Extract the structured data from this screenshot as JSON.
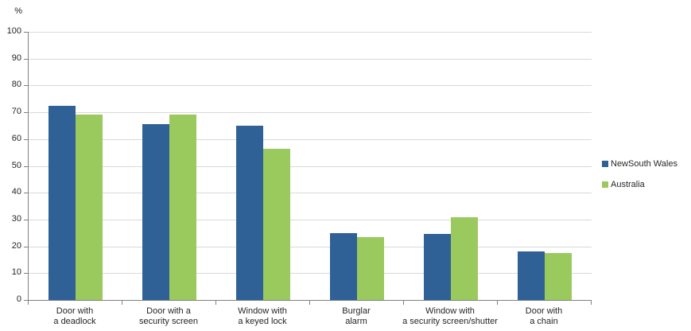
{
  "chart_data": {
    "type": "bar",
    "title": "",
    "xlabel": "",
    "ylabel": "%",
    "ylim": [
      0,
      100
    ],
    "ytick_interval": 10,
    "yticks": [
      0,
      10,
      20,
      30,
      40,
      50,
      60,
      70,
      80,
      90,
      100
    ],
    "grid": true,
    "legend_position": "right",
    "categories": [
      "Door with\na deadlock",
      "Door with a\nsecurity screen",
      "Window with\na keyed lock",
      "Burglar\nalarm",
      "Window with\na security screen/shutter",
      "Door with\na chain"
    ],
    "series": [
      {
        "name": "NewSouth Wales",
        "color": "#2F6096",
        "values": [
          72.5,
          65.5,
          65,
          25,
          24.5,
          18
        ]
      },
      {
        "name": "Australia",
        "color": "#9ACA5E",
        "values": [
          69,
          69,
          56.5,
          23.5,
          31,
          17.5
        ]
      }
    ]
  },
  "style": {
    "grid_color": "#D9D9D9",
    "axis_color": "#808080",
    "text_color": "#262626",
    "background": "#FFFFFF"
  }
}
